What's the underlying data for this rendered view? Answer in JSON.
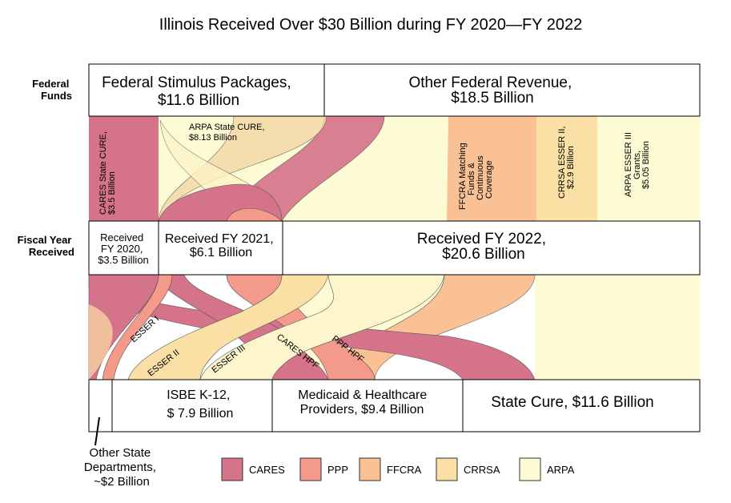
{
  "title": "Illinois Received Over $30 Billion during FY 2020—FY 2022",
  "row_labels": {
    "federal": [
      "Federal",
      "Funds"
    ],
    "fiscal": [
      "Fiscal Year",
      "Received"
    ]
  },
  "top_boxes": {
    "stimulus": [
      "Federal Stimulus Packages,",
      "$11.6 Billion"
    ],
    "other": [
      "Other Federal Revenue,",
      "$18.5 Billion"
    ]
  },
  "sources": {
    "cares_state_cure": [
      "CARES State CURE,",
      "$3.5 Billion"
    ],
    "arpa_state_cure": [
      "ARPA State CURE,",
      "$8.13 Billion"
    ],
    "ffcra": [
      "FFCRA Matching",
      "Funds &",
      "Continuous",
      "Coverage"
    ],
    "crrsa_esser": [
      "CRRSA ESSER II,",
      "$2.9 Billion"
    ],
    "arpa_esser": [
      "ARPA ESSER III",
      "Grants,",
      "$5.05 Billion"
    ]
  },
  "fy_boxes": {
    "fy2020": [
      "Received",
      "FY 2020,",
      "$3.5 Billion"
    ],
    "fy2021": [
      "Received FY 2021,",
      "$6.1 Billion"
    ],
    "fy2022": [
      "Received FY 2022,",
      "$20.6 Billion"
    ]
  },
  "flow_labels": {
    "esser1": "ESSER I",
    "esser2": "ESSER II",
    "esser3": "ESSER III",
    "cares_hpf": "CARES HPF",
    "ppp_hpf": "PPP HPF"
  },
  "destinations": {
    "other_state": [
      "Other State",
      "Departments,",
      "~$2 Billion"
    ],
    "isbe": [
      "ISBE K-12,",
      "$ 7.9 Billion"
    ],
    "medicaid": [
      "Medicaid & Healthcare",
      "Providers, $9.4 Billion"
    ],
    "state_cure": "State Cure, $11.6 Billion"
  },
  "legend": [
    {
      "label": "CARES",
      "color": "#d4738a"
    },
    {
      "label": "PPP",
      "color": "#f39a8a"
    },
    {
      "label": "FFCRA",
      "color": "#f9c194"
    },
    {
      "label": "CRRSA",
      "color": "#fbe0a6"
    },
    {
      "label": "ARPA",
      "color": "#fdfbd3"
    }
  ],
  "colors": {
    "cares": "#d4738a",
    "ppp": "#f39a8a",
    "ffcra": "#f9c194",
    "crrsa": "#fbe0a6",
    "arpa": "#fdfbd3"
  }
}
